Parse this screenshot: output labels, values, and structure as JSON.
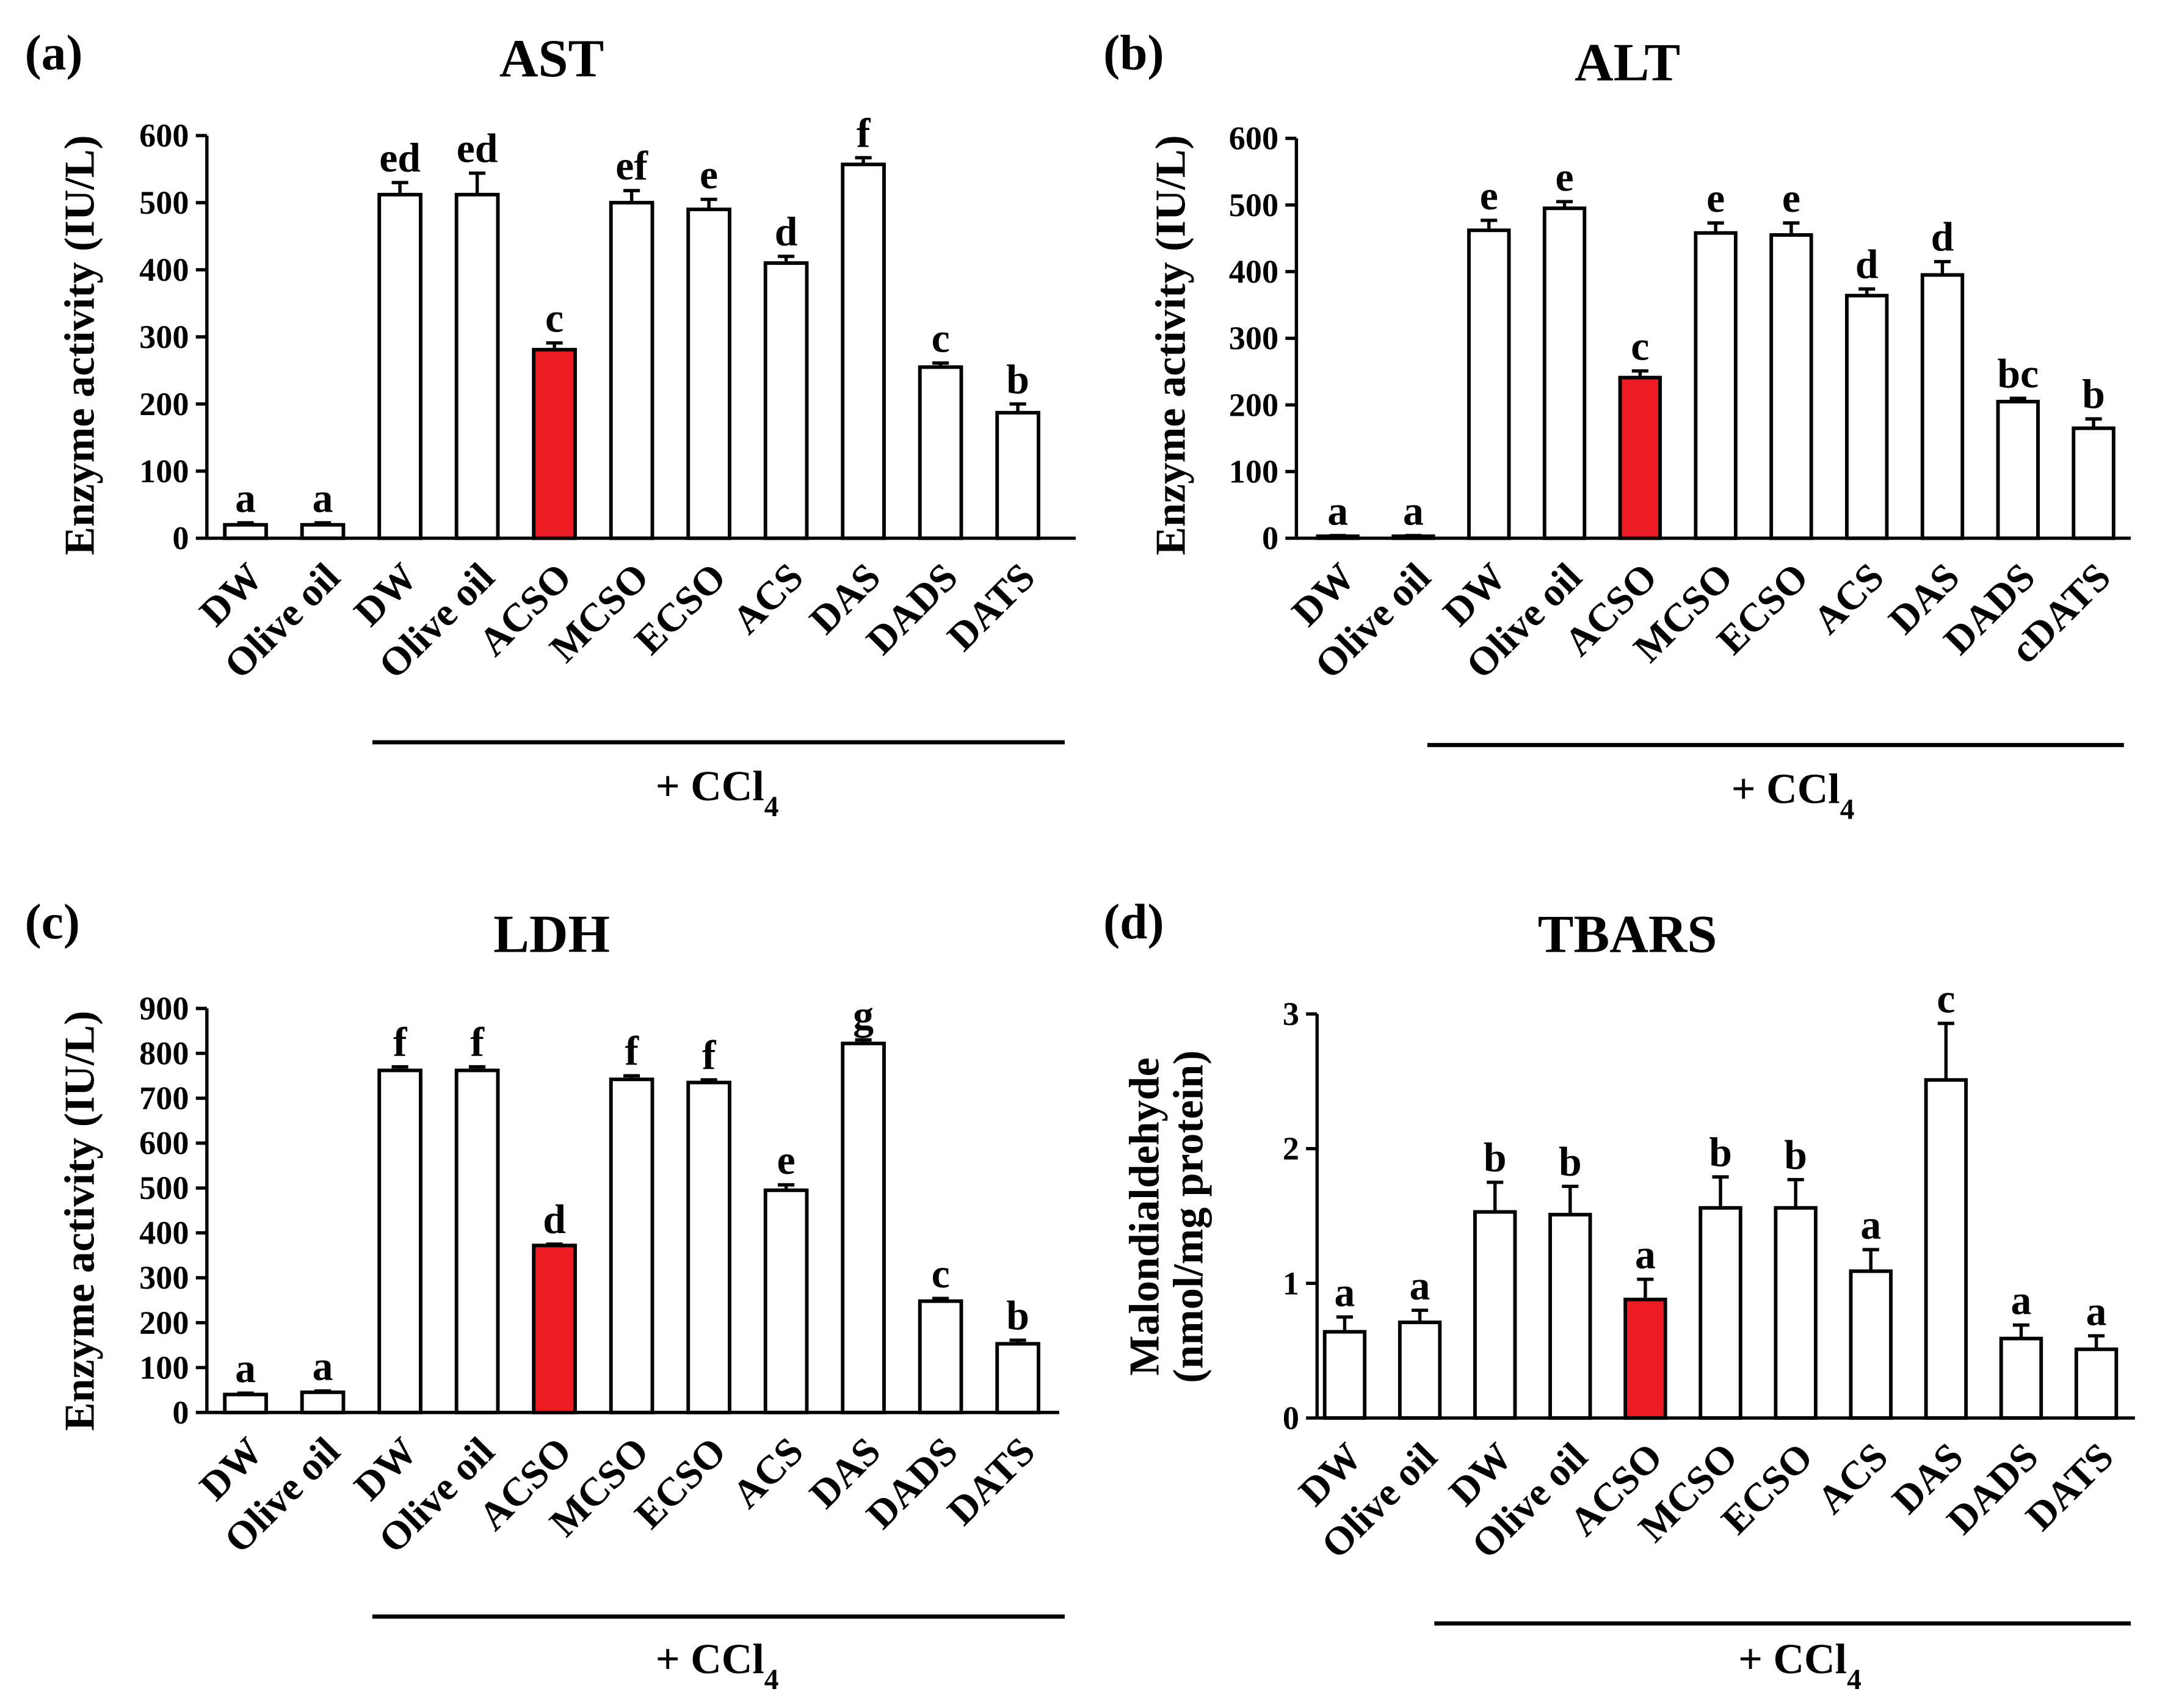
{
  "chart_data": [
    {
      "type": "bar",
      "panel_label": "(a)",
      "title": "AST",
      "ylabel_lines": [
        "Enzyme activity (IU/L)"
      ],
      "ylim": [
        0,
        600
      ],
      "yticks": [
        0,
        100,
        200,
        300,
        400,
        500,
        600
      ],
      "categories": [
        "DW",
        "Olive oil",
        "DW",
        "Olive oil",
        "ACSO",
        "MCSO",
        "ECSO",
        "ACS",
        "DAS",
        "DADS",
        "DATS"
      ],
      "values": [
        20,
        20,
        512,
        512,
        281,
        500,
        490,
        410,
        557,
        255,
        187
      ],
      "errors": [
        3,
        3,
        18,
        32,
        10,
        18,
        15,
        10,
        10,
        6,
        13
      ],
      "letters": [
        "a",
        "a",
        "ed",
        "ed",
        "c",
        "ef",
        "e",
        "d",
        "f",
        "c",
        "b"
      ],
      "bar_color": "#ffffff",
      "highlight_index": 4,
      "highlight_color": "#ed1c24",
      "group_label": "+ CCl",
      "group_label_sub": "4"
    },
    {
      "type": "bar",
      "panel_label": "(b)",
      "title": "ALT",
      "ylabel_lines": [
        "Enzyme activity (IU/L)"
      ],
      "ylim": [
        0,
        600
      ],
      "yticks": [
        0,
        100,
        200,
        300,
        400,
        500,
        600
      ],
      "categories": [
        "DW",
        "Olive oil",
        "DW",
        "Olive oil",
        "ACSO",
        "MCSO",
        "ECSO",
        "ACS",
        "DAS",
        "DADS",
        "cDATS"
      ],
      "values": [
        3,
        3,
        462,
        495,
        241,
        458,
        455,
        364,
        395,
        205,
        165
      ],
      "errors": [
        1,
        1,
        15,
        10,
        10,
        15,
        18,
        10,
        20,
        5,
        14
      ],
      "letters": [
        "a",
        "a",
        "e",
        "e",
        "c",
        "e",
        "e",
        "d",
        "d",
        "bc",
        "b"
      ],
      "bar_color": "#ffffff",
      "highlight_index": 4,
      "highlight_color": "#ed1c24",
      "group_label": "+ CCl",
      "group_label_sub": "4"
    },
    {
      "type": "bar",
      "panel_label": "(c)",
      "title": "LDH",
      "ylabel_lines": [
        "Enzyme activity (IU/L)"
      ],
      "ylim": [
        0,
        900
      ],
      "yticks": [
        0,
        100,
        200,
        300,
        400,
        500,
        600,
        700,
        800,
        900
      ],
      "categories": [
        "DW",
        "Olive oil",
        "DW",
        "Olive oil",
        "ACSO",
        "MCSO",
        "ECSO",
        "ACS",
        "DAS",
        "DADS",
        "DATS"
      ],
      "values": [
        40,
        45,
        762,
        762,
        372,
        742,
        735,
        495,
        822,
        248,
        153
      ],
      "errors": [
        3,
        3,
        8,
        8,
        3,
        8,
        6,
        12,
        8,
        6,
        8
      ],
      "letters": [
        "a",
        "a",
        "f",
        "f",
        "d",
        "f",
        "f",
        "e",
        "g",
        "c",
        "b"
      ],
      "bar_color": "#ffffff",
      "highlight_index": 4,
      "highlight_color": "#ed1c24",
      "group_label": "+ CCl",
      "group_label_sub": "4"
    },
    {
      "type": "bar",
      "panel_label": "(d)",
      "title": "TBARS",
      "ylabel_lines": [
        "Malondialdehyde",
        "(nmol/mg protein)"
      ],
      "ylim": [
        0,
        3
      ],
      "yticks": [
        0,
        1,
        2,
        3
      ],
      "categories": [
        "DW",
        "Olive oil",
        "DW",
        "Olive oil",
        "ACSO",
        "MCSO",
        "ECSO",
        "ACS",
        "DAS",
        "DADS",
        "DATS"
      ],
      "values": [
        0.64,
        0.71,
        1.53,
        1.51,
        0.88,
        1.56,
        1.56,
        1.09,
        2.51,
        0.59,
        0.51
      ],
      "errors": [
        0.11,
        0.09,
        0.22,
        0.21,
        0.15,
        0.23,
        0.21,
        0.16,
        0.42,
        0.1,
        0.1
      ],
      "letters": [
        "a",
        "a",
        "b",
        "b",
        "a",
        "b",
        "b",
        "a",
        "c",
        "a",
        "a"
      ],
      "bar_color": "#ffffff",
      "highlight_index": 4,
      "highlight_color": "#ed1c24",
      "group_label": "+ CCl",
      "group_label_sub": "4"
    }
  ]
}
